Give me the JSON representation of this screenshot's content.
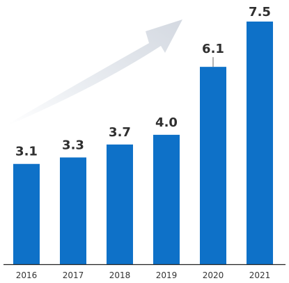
{
  "chart_data": {
    "type": "bar",
    "title": "",
    "xlabel": "",
    "ylabel": "",
    "categories": [
      "2016",
      "2017",
      "2018",
      "2019",
      "2020",
      "2021"
    ],
    "values": [
      3.1,
      3.3,
      3.7,
      4.0,
      6.1,
      7.5
    ],
    "value_labels": [
      "3.1",
      "3.3",
      "3.7",
      "4.0",
      "6.1",
      "7.5"
    ],
    "ylim": [
      0,
      7.5
    ],
    "grid": false,
    "legend": "none",
    "annotations": [
      "upward-trend-arrow"
    ],
    "colors": {
      "bar": "#0e71c8",
      "arrow": "#dfe3ea",
      "axis": "#222222"
    }
  }
}
